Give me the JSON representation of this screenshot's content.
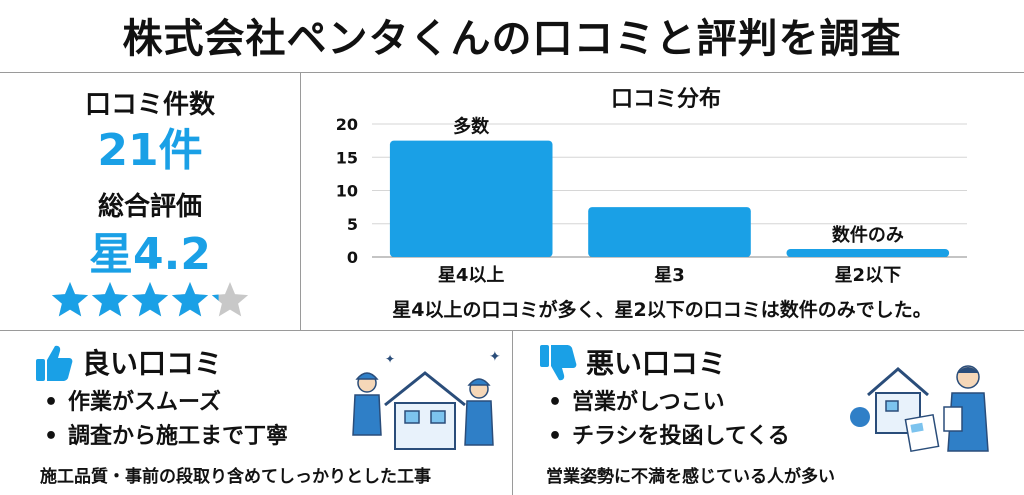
{
  "title": "株式会社ペンタくんの口コミと評判を調査",
  "stats": {
    "count_label": "口コミ件数",
    "count_value": "21件",
    "rating_label": "総合評価",
    "rating_value": "星4.2",
    "rating_stars": 4.2
  },
  "chart_data": {
    "type": "bar",
    "title": "口コミ分布",
    "categories": [
      "星4以上",
      "星3",
      "星2以下"
    ],
    "values": [
      17.5,
      7.5,
      1.2
    ],
    "annotations": [
      "多数",
      "",
      "数件のみ"
    ],
    "ylim": [
      0,
      20
    ],
    "yticks": [
      0,
      5,
      10,
      15,
      20
    ],
    "grid": true,
    "bar_color": "#1aa0e6"
  },
  "caption": "星4以上の口コミが多く、星2以下の口コミは数件のみでした。",
  "good": {
    "title": "良い口コミ",
    "items": [
      "作業がスムーズ",
      "調査から施工まで丁寧"
    ],
    "footer": "施工品質・事前の段取り含めてしっかりとした工事",
    "icon": "thumbs-up-icon"
  },
  "bad": {
    "title": "悪い口コミ",
    "items": [
      "営業がしつこい",
      "チラシを投函してくる"
    ],
    "footer": "営業姿勢に不満を感じている人が多い",
    "icon": "thumbs-down-icon"
  },
  "colors": {
    "accent": "#1aa0e6",
    "star_empty": "#c8c8c8"
  }
}
